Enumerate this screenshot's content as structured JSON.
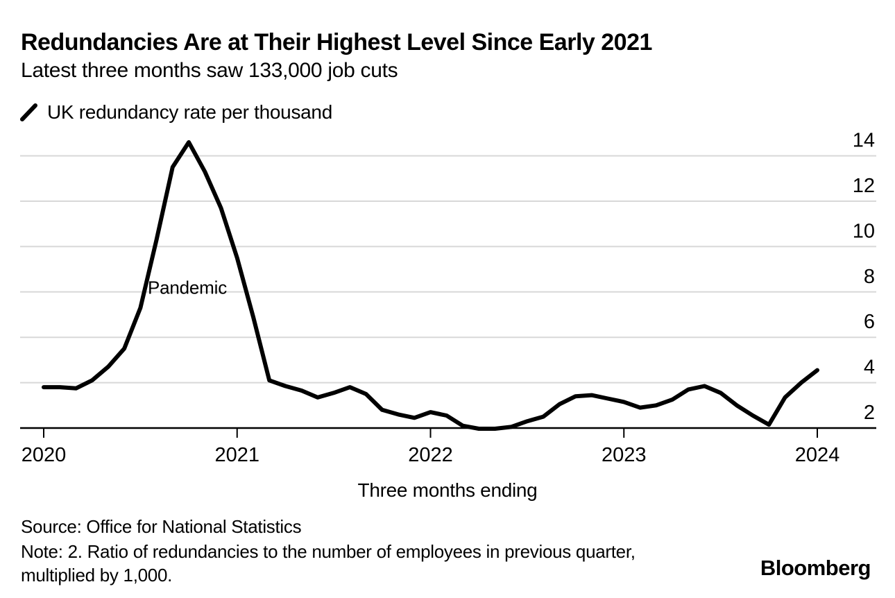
{
  "header": {
    "title": "Redundancies Are at Their Highest Level Since Early 2021",
    "subtitle": "Latest three months saw 133,000 job cuts"
  },
  "legend": {
    "icon": "line-slash-icon",
    "label": "UK redundancy rate per thousand"
  },
  "footer": {
    "source": "Source: Office for National Statistics",
    "note_line1": "Note: 2. Ratio of redundancies to the number of employees in previous quarter,",
    "note_line2": "multiplied by 1,000.",
    "brand": "Bloomberg"
  },
  "colors": {
    "background": "#ffffff",
    "text": "#000000",
    "line": "#000000",
    "axis": "#000000",
    "grid": "#d8d8d8"
  },
  "chart_data": {
    "type": "line",
    "title": "Redundancies Are at Their Highest Level Since Early 2021",
    "subtitle": "Latest three months saw 133,000 job cuts",
    "series_name": "UK redundancy rate per thousand",
    "xlabel": "Three months ending",
    "ylabel": "",
    "x_tick_labels": [
      "2020",
      "2021",
      "2022",
      "2023",
      "2024"
    ],
    "y_ticks": [
      2,
      4,
      6,
      8,
      10,
      12,
      14
    ],
    "ylim": [
      2,
      14.8
    ],
    "grid": "horizontal-only",
    "legend_position": "top-left",
    "line_color": "#000000",
    "grid_color": "#d8d8d8",
    "text_color": "#000000",
    "annotation": {
      "text": "Pandemic"
    },
    "months": [
      "2020-01",
      "2020-02",
      "2020-03",
      "2020-04",
      "2020-05",
      "2020-06",
      "2020-07",
      "2020-08",
      "2020-09",
      "2020-10",
      "2020-11",
      "2020-12",
      "2021-01",
      "2021-02",
      "2021-03",
      "2021-04",
      "2021-05",
      "2021-06",
      "2021-07",
      "2021-08",
      "2021-09",
      "2021-10",
      "2021-11",
      "2021-12",
      "2022-01",
      "2022-02",
      "2022-03",
      "2022-04",
      "2022-05",
      "2022-06",
      "2022-07",
      "2022-08",
      "2022-09",
      "2022-10",
      "2022-11",
      "2022-12",
      "2023-01",
      "2023-02",
      "2023-03",
      "2023-04",
      "2023-05",
      "2023-06",
      "2023-07",
      "2023-08",
      "2023-09",
      "2023-10",
      "2023-11",
      "2023-12",
      "2024-01"
    ],
    "values": [
      3.8,
      3.8,
      3.75,
      4.1,
      4.7,
      5.5,
      7.3,
      10.3,
      13.5,
      14.6,
      13.3,
      11.7,
      9.5,
      6.9,
      4.1,
      3.85,
      3.65,
      3.35,
      3.55,
      3.8,
      3.5,
      2.8,
      2.6,
      2.45,
      2.7,
      2.55,
      2.1,
      1.97,
      1.97,
      2.05,
      2.3,
      2.5,
      3.05,
      3.4,
      3.45,
      3.3,
      3.15,
      2.9,
      3.0,
      3.25,
      3.7,
      3.85,
      3.55,
      3.0,
      2.55,
      2.15,
      3.35,
      4.0,
      4.55
    ]
  }
}
